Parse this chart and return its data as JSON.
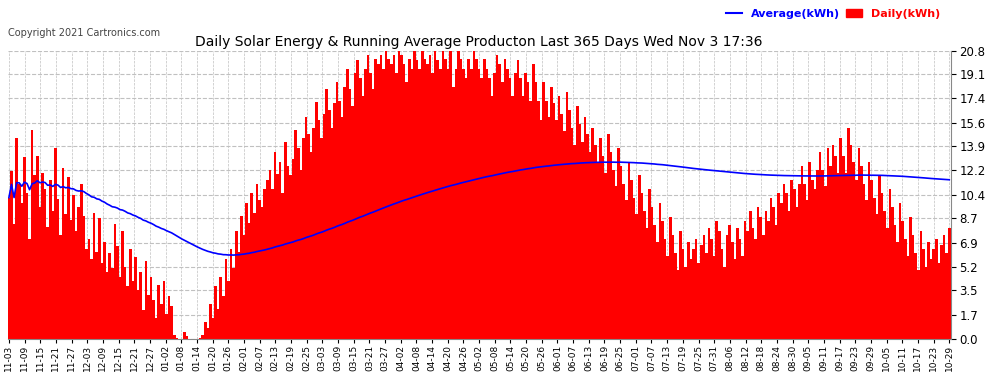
{
  "title": "Daily Solar Energy & Running Average Producton Last 365 Days Wed Nov 3 17:36",
  "copyright": "Copyright 2021 Cartronics.com",
  "yticks": [
    0.0,
    1.7,
    3.5,
    5.2,
    6.9,
    8.7,
    10.4,
    12.2,
    13.9,
    15.6,
    17.4,
    19.1,
    20.8
  ],
  "ymax": 20.8,
  "ymin": 0.0,
  "bar_color": "#ff0000",
  "avg_line_color": "#0000ff",
  "background_color": "#ffffff",
  "grid_color": "#c0c0c0",
  "title_color": "#000000",
  "title_fontsize": 10,
  "copyright_color": "#444444",
  "copyright_fontsize": 7,
  "legend_avg_label": "Average(kWh)",
  "legend_daily_label": "Daily(kWh)",
  "legend_fontsize": 8,
  "x_tick_dates": [
    "11-03",
    "11-09",
    "11-15",
    "11-21",
    "11-27",
    "12-03",
    "12-09",
    "12-15",
    "12-21",
    "12-27",
    "01-02",
    "01-08",
    "01-14",
    "01-20",
    "01-26",
    "02-01",
    "02-07",
    "02-13",
    "02-19",
    "02-25",
    "03-03",
    "03-09",
    "03-15",
    "03-21",
    "03-27",
    "04-02",
    "04-08",
    "04-14",
    "04-20",
    "04-26",
    "05-02",
    "05-08",
    "05-14",
    "05-20",
    "05-26",
    "06-01",
    "06-07",
    "06-13",
    "06-19",
    "06-25",
    "07-01",
    "07-07",
    "07-13",
    "07-19",
    "07-25",
    "07-31",
    "08-06",
    "08-12",
    "08-18",
    "08-24",
    "08-30",
    "09-05",
    "09-11",
    "09-17",
    "09-23",
    "09-29",
    "10-05",
    "10-11",
    "10-17",
    "10-23",
    "10-29"
  ],
  "n_days": 365,
  "daily_values": [
    10.2,
    12.1,
    8.3,
    14.5,
    11.2,
    9.8,
    13.1,
    10.5,
    7.2,
    15.1,
    11.8,
    13.2,
    9.5,
    12.0,
    10.8,
    8.1,
    11.5,
    9.2,
    13.8,
    10.1,
    7.5,
    12.3,
    9.0,
    11.7,
    8.6,
    10.4,
    7.8,
    9.5,
    11.2,
    8.9,
    6.5,
    7.2,
    5.8,
    9.1,
    6.3,
    8.7,
    5.5,
    7.0,
    4.8,
    6.2,
    5.1,
    8.3,
    6.7,
    4.5,
    7.8,
    5.2,
    3.8,
    6.5,
    4.2,
    5.9,
    3.5,
    4.8,
    2.1,
    5.6,
    3.2,
    4.5,
    2.8,
    1.5,
    3.9,
    2.5,
    4.2,
    1.8,
    3.1,
    2.4,
    0.3,
    0.1,
    0.0,
    0.0,
    0.5,
    0.2,
    0.0,
    0.0,
    0.0,
    0.0,
    0.1,
    0.3,
    1.2,
    0.8,
    2.5,
    1.5,
    3.8,
    2.2,
    4.5,
    3.1,
    5.8,
    4.2,
    6.5,
    5.1,
    7.8,
    6.3,
    8.9,
    7.5,
    9.8,
    8.4,
    10.5,
    9.1,
    11.2,
    10.0,
    9.5,
    10.8,
    11.5,
    12.2,
    10.8,
    13.5,
    11.9,
    12.8,
    10.5,
    14.2,
    12.5,
    11.8,
    13.0,
    15.1,
    13.8,
    12.2,
    14.5,
    16.0,
    14.8,
    13.5,
    15.2,
    17.1,
    15.8,
    14.5,
    16.2,
    18.0,
    16.5,
    15.2,
    17.0,
    18.5,
    17.2,
    16.0,
    18.2,
    19.5,
    18.0,
    16.8,
    19.2,
    20.1,
    18.8,
    17.5,
    19.5,
    20.5,
    19.2,
    18.0,
    20.2,
    19.8,
    20.5,
    19.5,
    20.8,
    20.2,
    19.8,
    20.5,
    19.2,
    20.8,
    20.5,
    19.8,
    18.5,
    20.2,
    19.5,
    20.8,
    20.1,
    19.5,
    20.8,
    20.2,
    19.8,
    20.5,
    19.2,
    20.8,
    20.1,
    19.5,
    20.8,
    20.2,
    19.5,
    20.8,
    18.2,
    19.5,
    20.8,
    20.2,
    19.5,
    18.8,
    20.2,
    19.5,
    20.8,
    20.2,
    19.5,
    18.8,
    20.2,
    19.5,
    18.8,
    17.5,
    19.2,
    20.5,
    19.8,
    18.5,
    20.2,
    19.5,
    18.8,
    17.5,
    19.2,
    20.1,
    18.8,
    17.5,
    19.2,
    18.5,
    17.2,
    19.8,
    18.5,
    17.2,
    15.8,
    18.5,
    17.2,
    16.0,
    18.2,
    17.0,
    15.8,
    17.5,
    16.2,
    15.0,
    17.8,
    16.5,
    15.2,
    14.0,
    16.8,
    15.5,
    14.2,
    16.0,
    14.8,
    13.5,
    15.2,
    14.0,
    12.8,
    14.5,
    13.2,
    12.0,
    14.8,
    13.5,
    12.2,
    11.0,
    13.8,
    12.5,
    11.2,
    10.0,
    12.8,
    11.5,
    10.2,
    9.0,
    11.8,
    10.5,
    9.2,
    8.0,
    10.8,
    9.5,
    8.2,
    7.0,
    9.8,
    8.5,
    7.2,
    6.0,
    8.8,
    7.5,
    6.2,
    5.0,
    7.8,
    6.5,
    5.2,
    7.0,
    5.8,
    6.5,
    7.2,
    5.5,
    6.8,
    7.5,
    6.2,
    8.0,
    7.2,
    6.0,
    8.5,
    7.8,
    6.5,
    5.2,
    7.5,
    8.2,
    7.0,
    5.8,
    8.0,
    7.2,
    6.0,
    8.5,
    7.8,
    9.2,
    8.0,
    7.2,
    9.5,
    8.8,
    7.5,
    9.2,
    8.5,
    10.2,
    9.5,
    8.2,
    10.5,
    9.8,
    11.2,
    10.5,
    9.2,
    11.5,
    10.8,
    9.5,
    11.2,
    12.5,
    11.2,
    10.0,
    12.8,
    11.5,
    10.8,
    12.2,
    13.5,
    12.2,
    11.0,
    13.8,
    12.5,
    14.0,
    13.2,
    12.0,
    14.5,
    13.2,
    12.0,
    15.2,
    14.0,
    12.8,
    11.5,
    13.8,
    12.5,
    11.2,
    10.0,
    12.8,
    11.5,
    10.2,
    9.0,
    11.8,
    10.5,
    9.2,
    8.0,
    10.8,
    9.5,
    8.2,
    7.0,
    9.8,
    8.5,
    7.2,
    6.0,
    8.8,
    7.5,
    6.2,
    5.0,
    7.8,
    6.5,
    5.2,
    7.0,
    5.8,
    6.5,
    7.2,
    5.5,
    6.8,
    7.5,
    6.2,
    8.0
  ]
}
